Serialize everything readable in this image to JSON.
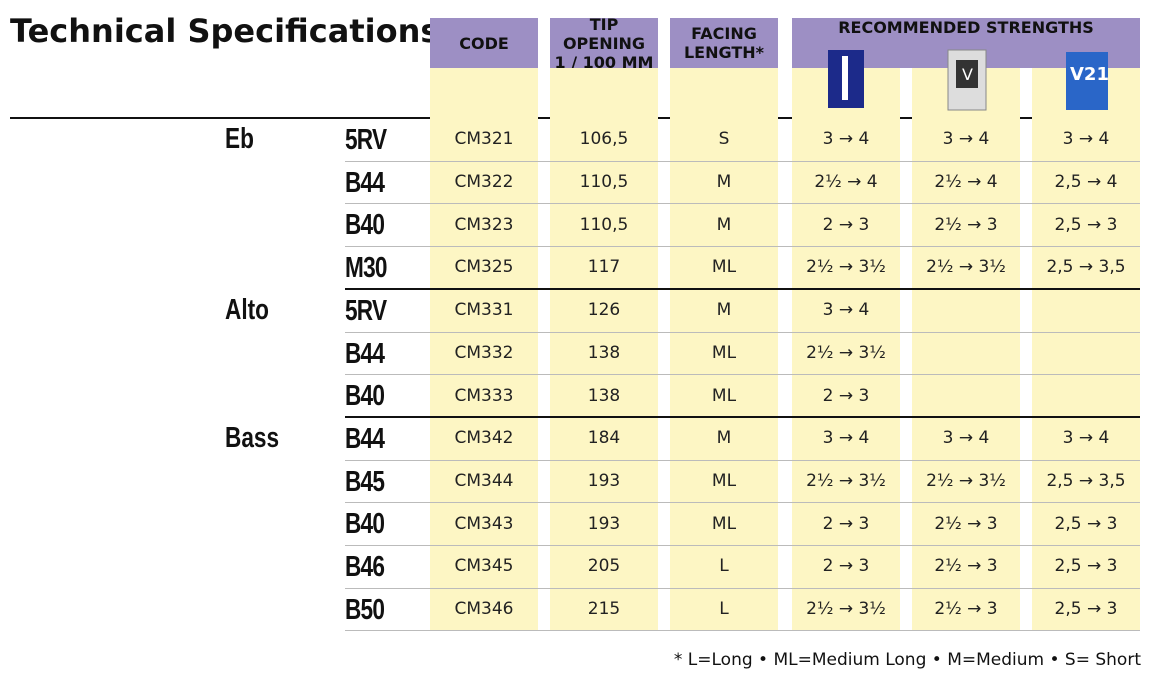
{
  "header": {
    "title": "Technical Specifications",
    "columns": [
      "CODE",
      "TIP OPENING\n1 / 100 MM",
      "FACING\nLENGTH*",
      "RECOMMENDED STRENGTHS"
    ]
  },
  "groups": [
    {
      "name": "Eb",
      "rows": [
        {
          "model": "5RV",
          "code": "CM321",
          "tip": "106,5",
          "facing": "S",
          "strengths": [
            "3 → 4",
            "3 → 4",
            "3 → 4"
          ]
        },
        {
          "model": "B44",
          "code": "CM322",
          "tip": "110,5",
          "facing": "M",
          "strengths": [
            "2½ → 4",
            "2½ → 4",
            "2,5 → 4"
          ]
        },
        {
          "model": "B40",
          "code": "CM323",
          "tip": "110,5",
          "facing": "M",
          "strengths": [
            "2 → 3",
            "2½ → 3",
            "2,5 → 3"
          ]
        },
        {
          "model": "M30",
          "code": "CM325",
          "tip": "117",
          "facing": "ML",
          "strengths": [
            "2½ → 3½",
            "2½ → 3½",
            "2,5 → 3,5"
          ]
        }
      ]
    },
    {
      "name": "Alto",
      "rows": [
        {
          "model": "5RV",
          "code": "CM331",
          "tip": "126",
          "facing": "M",
          "strengths": [
            "3 → 4"
          ]
        },
        {
          "model": "B44",
          "code": "CM332",
          "tip": "138",
          "facing": "ML",
          "strengths": [
            "2½ → 3½"
          ]
        },
        {
          "model": "B40",
          "code": "CM333",
          "tip": "138",
          "facing": "ML",
          "strengths": [
            "2 → 3"
          ]
        }
      ]
    },
    {
      "name": "Bass",
      "rows": [
        {
          "model": "B44",
          "code": "CM342",
          "tip": "184",
          "facing": "M",
          "strengths": [
            "3 → 4",
            "3 → 4",
            "3 → 4"
          ]
        },
        {
          "model": "B45",
          "code": "CM344",
          "tip": "193",
          "facing": "ML",
          "strengths": [
            "2½ → 3½",
            "2½ → 3½",
            "2,5 → 3,5"
          ]
        },
        {
          "model": "B40",
          "code": "CM343",
          "tip": "193",
          "facing": "ML",
          "strengths": [
            "2 → 3",
            "2½ → 3",
            "2,5 → 3"
          ]
        },
        {
          "model": "B46",
          "code": "CM345",
          "tip": "205",
          "facing": "L",
          "strengths": [
            "2 → 3",
            "2½ → 3",
            "2,5 → 3"
          ]
        },
        {
          "model": "B50",
          "code": "CM346",
          "tip": "215",
          "facing": "L",
          "strengths": [
            "2½ → 3½",
            "2½ → 3",
            "2,5 → 3"
          ]
        }
      ]
    }
  ],
  "footnote": "* L=Long • ML=Medium Long • M=Medium • S= Short"
}
